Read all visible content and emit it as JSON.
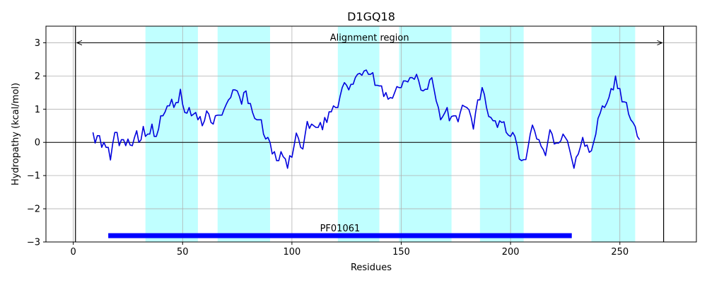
{
  "chart_data": {
    "type": "line",
    "title": "D1GQ18",
    "xlabel": "Residues",
    "ylabel": "Hydropathy (kcal/mol)",
    "xlim": [
      -12.5,
      285
    ],
    "ylim": [
      -3,
      3.5
    ],
    "xticks": [
      0,
      50,
      100,
      150,
      200,
      250
    ],
    "xtick_labels": [
      "0",
      "50",
      "100",
      "150",
      "200",
      "250"
    ],
    "yticks": [
      -3,
      -2,
      -1,
      0,
      1,
      2,
      3
    ],
    "ytick_labels": [
      "−3",
      "−2",
      "−1",
      "0",
      "1",
      "2",
      "3"
    ],
    "grid": true,
    "zero_line": 0,
    "vlines": [
      1,
      270
    ],
    "highlight_color": "#c0ffff",
    "line_color": "#0000dd",
    "domain_color": "#0000ff",
    "highlight_regions": [
      [
        33,
        57
      ],
      [
        66,
        90
      ],
      [
        121,
        140
      ],
      [
        149,
        173
      ],
      [
        186,
        206
      ],
      [
        237,
        257
      ]
    ],
    "alignment": {
      "label": "Alignment region",
      "start": 1,
      "end": 270,
      "y": 3.0
    },
    "domain": {
      "label": "PF01061",
      "start": 16,
      "end": 228,
      "y": -2.81
    },
    "series": [
      {
        "x": [
          9,
          10,
          11,
          12,
          13,
          14,
          15,
          16,
          17,
          18,
          19,
          20,
          21,
          22,
          23,
          24,
          25,
          26,
          27,
          28,
          29,
          30,
          31,
          32,
          33,
          34,
          35,
          36,
          37,
          38,
          39,
          40,
          41,
          42,
          43,
          44,
          45,
          46,
          47,
          48,
          49,
          50,
          51,
          52,
          53,
          54,
          55,
          56,
          57,
          58,
          59,
          60,
          61,
          62,
          63,
          64,
          65,
          66,
          67,
          68,
          69,
          70,
          71,
          72,
          73,
          74,
          75,
          76,
          77,
          78,
          79,
          80,
          81,
          82,
          83,
          84,
          85,
          86,
          87,
          88,
          89,
          90,
          91,
          92,
          93,
          94,
          95,
          96,
          97,
          98,
          99,
          100,
          101,
          102,
          103,
          104,
          105,
          106,
          107,
          108,
          109,
          110,
          111,
          112,
          113,
          114,
          115,
          116,
          117,
          118,
          119,
          120,
          121,
          122,
          123,
          124,
          125,
          126,
          127,
          128,
          129,
          130,
          131,
          132,
          133,
          134,
          135,
          136,
          137,
          138,
          139,
          140,
          141,
          142,
          143,
          144,
          145,
          146,
          147,
          148,
          149,
          150,
          151,
          152,
          153,
          154,
          155,
          156,
          157,
          158,
          159,
          160,
          161,
          162,
          163,
          164,
          165,
          166,
          167,
          168,
          169,
          170,
          171,
          172,
          173,
          174,
          175,
          176,
          177,
          178,
          179,
          180,
          181,
          182,
          183,
          184,
          185,
          186,
          187,
          188,
          189,
          190,
          191,
          192,
          193,
          194,
          195,
          196,
          197,
          198,
          199,
          200,
          201,
          202,
          203,
          204,
          205,
          206,
          207,
          208,
          209,
          210,
          211,
          212,
          213,
          214,
          215,
          216,
          217,
          218,
          219,
          220,
          221,
          222,
          223,
          224,
          225,
          226,
          227,
          228,
          229,
          230,
          231,
          232,
          233,
          234,
          235,
          236,
          237,
          238,
          239,
          240,
          241,
          242,
          243,
          244,
          245,
          246,
          247,
          248,
          249,
          250,
          251,
          252,
          253,
          254,
          255,
          256,
          257,
          258,
          259
        ],
        "values": [
          0.3,
          -0.02,
          0.2,
          0.2,
          -0.15,
          0.0,
          -0.15,
          -0.15,
          -0.53,
          -0.05,
          0.3,
          0.3,
          -0.1,
          0.08,
          0.08,
          -0.1,
          0.1,
          -0.08,
          -0.1,
          0.15,
          0.35,
          0.0,
          0.08,
          0.48,
          0.18,
          0.25,
          0.25,
          0.55,
          0.18,
          0.18,
          0.4,
          0.8,
          0.8,
          0.92,
          1.1,
          1.1,
          1.3,
          1.05,
          1.2,
          1.2,
          1.6,
          1.15,
          0.9,
          0.88,
          1.05,
          0.8,
          0.85,
          0.9,
          0.68,
          0.78,
          0.5,
          0.65,
          0.95,
          0.85,
          0.6,
          0.55,
          0.8,
          0.82,
          0.82,
          0.82,
          1.0,
          1.15,
          1.28,
          1.35,
          1.58,
          1.58,
          1.55,
          1.38,
          1.15,
          1.5,
          1.55,
          1.17,
          1.17,
          0.9,
          0.72,
          0.68,
          0.68,
          0.68,
          0.25,
          0.1,
          0.15,
          0.0,
          -0.35,
          -0.28,
          -0.55,
          -0.55,
          -0.28,
          -0.43,
          -0.5,
          -0.78,
          -0.4,
          -0.45,
          -0.1,
          0.28,
          0.12,
          -0.15,
          -0.2,
          0.22,
          0.63,
          0.42,
          0.55,
          0.5,
          0.45,
          0.45,
          0.6,
          0.38,
          0.75,
          0.6,
          0.92,
          0.92,
          1.1,
          1.05,
          1.05,
          1.38,
          1.65,
          1.8,
          1.72,
          1.58,
          1.75,
          1.75,
          1.95,
          2.05,
          2.08,
          2.02,
          2.15,
          2.18,
          2.05,
          2.05,
          2.1,
          1.72,
          1.72,
          1.7,
          1.7,
          1.38,
          1.5,
          1.3,
          1.35,
          1.33,
          1.5,
          1.68,
          1.65,
          1.65,
          1.85,
          1.85,
          1.82,
          1.95,
          1.95,
          1.9,
          2.05,
          1.85,
          1.58,
          1.55,
          1.6,
          1.6,
          1.88,
          1.95,
          1.6,
          1.25,
          1.05,
          0.68,
          0.78,
          0.9,
          1.05,
          0.65,
          0.78,
          0.8,
          0.8,
          0.62,
          0.9,
          1.12,
          1.08,
          1.05,
          0.98,
          0.75,
          0.4,
          0.9,
          1.28,
          1.28,
          1.65,
          1.45,
          1.05,
          0.78,
          0.75,
          0.65,
          0.65,
          0.45,
          0.65,
          0.6,
          0.62,
          0.3,
          0.22,
          0.18,
          0.3,
          0.18,
          -0.1,
          -0.5,
          -0.55,
          -0.52,
          -0.52,
          -0.15,
          0.25,
          0.52,
          0.35,
          0.1,
          0.08,
          -0.12,
          -0.22,
          -0.4,
          0.0,
          0.38,
          0.25,
          -0.05,
          -0.02,
          -0.02,
          0.05,
          0.25,
          0.15,
          0.05,
          -0.22,
          -0.5,
          -0.78,
          -0.45,
          -0.35,
          -0.12,
          0.15,
          -0.12,
          -0.08,
          -0.3,
          -0.25,
          0.0,
          0.25,
          0.72,
          0.88,
          1.1,
          1.05,
          1.18,
          1.35,
          1.62,
          1.58,
          2.0,
          1.62,
          1.62,
          1.22,
          1.22,
          1.2,
          0.85,
          0.68,
          0.6,
          0.48,
          0.18,
          0.08
        ]
      }
    ]
  }
}
